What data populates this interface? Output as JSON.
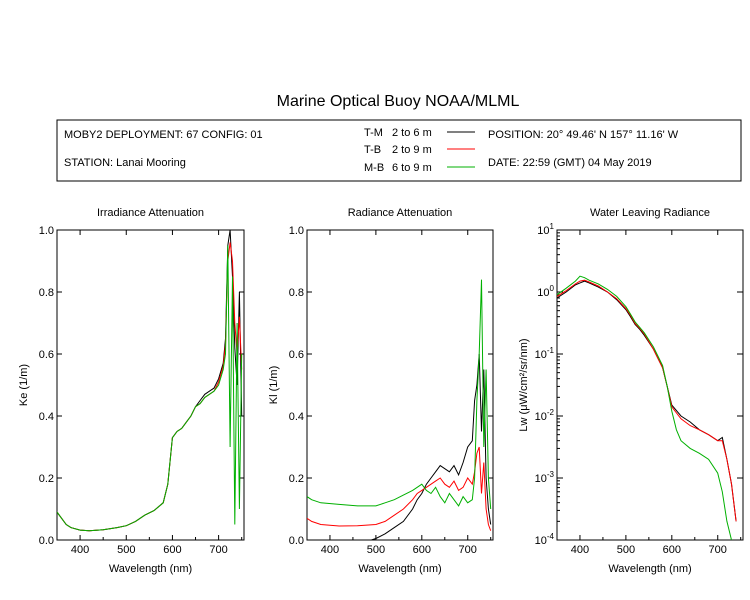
{
  "title": "Marine Optical Buoy NOAA/MLML",
  "info": {
    "deployment": "MOBY2 DEPLOYMENT: 67 CONFIG: 01",
    "station": "STATION: Lanai Mooring",
    "position": "POSITION: 20° 49.46' N   157° 11.16' W",
    "date": "DATE: 22:59 (GMT) 04 May 2019"
  },
  "legend": [
    {
      "code": "T-M",
      "range": "2 to 6  m",
      "color": "#000000"
    },
    {
      "code": "T-B",
      "range": "2 to 9  m",
      "color": "#ff0000"
    },
    {
      "code": "M-B",
      "range": "6 to 9  m",
      "color": "#00b000"
    }
  ],
  "chart_data": [
    {
      "type": "line",
      "title": "Irradiance Attenuation",
      "xlabel": "Wavelength (nm)",
      "ylabel": "Ke  (1/m)",
      "xlim": [
        350,
        755
      ],
      "ylim": [
        0,
        1
      ],
      "xticks": [
        400,
        500,
        600,
        700
      ],
      "xtick_labels": [
        "400",
        "500",
        "600",
        "700"
      ],
      "yticks": [
        0,
        0.2,
        0.4,
        0.6,
        0.8,
        1.0
      ],
      "ytick_labels": [
        "0.0",
        "0.2",
        "0.4",
        "0.6",
        "0.8",
        "1.0"
      ],
      "series": [
        {
          "name": "T-M",
          "color": "#000000",
          "x": [
            350,
            360,
            370,
            380,
            400,
            420,
            450,
            480,
            500,
            520,
            540,
            560,
            580,
            590,
            600,
            610,
            620,
            630,
            640,
            650,
            660,
            670,
            680,
            690,
            700,
            710,
            715,
            720,
            725,
            730,
            735,
            740,
            745,
            750
          ],
          "y": [
            0.09,
            0.07,
            0.05,
            0.04,
            0.032,
            0.03,
            0.033,
            0.04,
            0.046,
            0.06,
            0.08,
            0.095,
            0.12,
            0.18,
            0.33,
            0.35,
            0.36,
            0.38,
            0.4,
            0.43,
            0.45,
            0.47,
            0.48,
            0.49,
            0.52,
            0.57,
            0.65,
            0.95,
            1.0,
            0.85,
            0.62,
            0.5,
            0.8,
            0.4
          ]
        },
        {
          "name": "T-B",
          "color": "#ff0000",
          "x": [
            350,
            360,
            370,
            380,
            400,
            420,
            450,
            480,
            500,
            520,
            540,
            560,
            580,
            590,
            600,
            610,
            620,
            630,
            640,
            650,
            660,
            670,
            680,
            690,
            700,
            710,
            715,
            720,
            725,
            730,
            735,
            740,
            745,
            750
          ],
          "y": [
            0.09,
            0.07,
            0.05,
            0.04,
            0.032,
            0.03,
            0.033,
            0.04,
            0.046,
            0.06,
            0.08,
            0.095,
            0.12,
            0.18,
            0.33,
            0.35,
            0.36,
            0.38,
            0.4,
            0.43,
            0.44,
            0.46,
            0.47,
            0.48,
            0.51,
            0.56,
            0.63,
            0.9,
            0.96,
            0.9,
            0.7,
            0.6,
            0.72,
            0.55
          ]
        },
        {
          "name": "M-B",
          "color": "#00b000",
          "x": [
            350,
            360,
            370,
            380,
            400,
            420,
            450,
            480,
            500,
            520,
            540,
            560,
            580,
            590,
            600,
            610,
            620,
            630,
            640,
            650,
            660,
            670,
            680,
            690,
            700,
            710,
            715,
            720,
            725,
            730,
            735,
            740,
            745,
            750
          ],
          "y": [
            0.09,
            0.07,
            0.05,
            0.04,
            0.032,
            0.03,
            0.033,
            0.04,
            0.046,
            0.06,
            0.08,
            0.095,
            0.12,
            0.18,
            0.33,
            0.35,
            0.36,
            0.38,
            0.4,
            0.43,
            0.44,
            0.46,
            0.47,
            0.48,
            0.5,
            0.55,
            0.6,
            0.95,
            0.3,
            0.85,
            0.05,
            0.7,
            0.1,
            0.6
          ]
        }
      ]
    },
    {
      "type": "line",
      "title": "Radiance Attenuation",
      "xlabel": "Wavelength (nm)",
      "ylabel": "Kl  (1/m)",
      "xlim": [
        350,
        755
      ],
      "ylim": [
        0,
        1
      ],
      "xticks": [
        400,
        500,
        600,
        700
      ],
      "xtick_labels": [
        "400",
        "500",
        "600",
        "700"
      ],
      "yticks": [
        0,
        0.2,
        0.4,
        0.6,
        0.8,
        1.0
      ],
      "ytick_labels": [
        "0.0",
        "0.2",
        "0.4",
        "0.6",
        "0.8",
        "1.0"
      ],
      "series": [
        {
          "name": "T-M",
          "color": "#000000",
          "x": [
            350,
            380,
            420,
            460,
            490,
            500,
            520,
            540,
            560,
            580,
            590,
            600,
            610,
            620,
            630,
            640,
            650,
            660,
            670,
            680,
            690,
            700,
            710,
            715,
            720,
            725,
            730,
            735,
            740,
            745,
            750
          ],
          "y": [
            0.0,
            0.0,
            0.0,
            0.0,
            0.0,
            0.005,
            0.02,
            0.04,
            0.06,
            0.1,
            0.13,
            0.15,
            0.18,
            0.2,
            0.22,
            0.24,
            0.23,
            0.22,
            0.24,
            0.21,
            0.25,
            0.3,
            0.32,
            0.45,
            0.5,
            0.6,
            0.35,
            0.55,
            0.2,
            0.1,
            0.05
          ]
        },
        {
          "name": "T-B",
          "color": "#ff0000",
          "x": [
            350,
            360,
            380,
            420,
            460,
            500,
            520,
            540,
            560,
            580,
            590,
            600,
            610,
            620,
            630,
            640,
            650,
            660,
            670,
            680,
            690,
            700,
            710,
            715,
            720,
            725,
            730,
            735,
            740,
            745,
            750
          ],
          "y": [
            0.07,
            0.06,
            0.05,
            0.045,
            0.046,
            0.05,
            0.06,
            0.08,
            0.1,
            0.13,
            0.15,
            0.16,
            0.17,
            0.18,
            0.19,
            0.2,
            0.18,
            0.17,
            0.19,
            0.16,
            0.17,
            0.2,
            0.18,
            0.22,
            0.28,
            0.3,
            0.15,
            0.25,
            0.1,
            0.05,
            0.03
          ]
        },
        {
          "name": "M-B",
          "color": "#00b000",
          "x": [
            350,
            360,
            380,
            420,
            460,
            500,
            520,
            540,
            560,
            580,
            590,
            600,
            610,
            620,
            630,
            640,
            650,
            660,
            670,
            680,
            690,
            700,
            710,
            715,
            720,
            725,
            730,
            735,
            740,
            745,
            750
          ],
          "y": [
            0.14,
            0.13,
            0.12,
            0.115,
            0.11,
            0.11,
            0.12,
            0.13,
            0.145,
            0.16,
            0.17,
            0.18,
            0.16,
            0.15,
            0.17,
            0.14,
            0.12,
            0.15,
            0.13,
            0.11,
            0.14,
            0.12,
            0.13,
            0.2,
            0.45,
            0.6,
            0.84,
            0.3,
            0.55,
            0.2,
            0.1
          ]
        }
      ]
    },
    {
      "type": "line",
      "title": "Water Leaving Radiance",
      "xlabel": "Wavelength (nm)",
      "ylabel": "Lw  (μW/cm²/sr/nm)",
      "xscale": "log-y",
      "xlim": [
        350,
        755
      ],
      "ylim": [
        0.0001,
        10
      ],
      "xticks": [
        400,
        500,
        600,
        700
      ],
      "xtick_labels": [
        "400",
        "500",
        "600",
        "700"
      ],
      "ytick_labels": [
        "10^1",
        "10^0",
        "10^-1",
        "10^-2",
        "10^-3",
        "10^-4"
      ],
      "series": [
        {
          "name": "T-M",
          "color": "#000000",
          "x": [
            350,
            370,
            390,
            400,
            410,
            420,
            440,
            460,
            480,
            500,
            510,
            520,
            530,
            540,
            560,
            580,
            590,
            600,
            620,
            640,
            660,
            680,
            700,
            710,
            720,
            730,
            740
          ],
          "y": [
            0.8,
            1.0,
            1.3,
            1.4,
            1.5,
            1.4,
            1.2,
            1.0,
            0.75,
            0.52,
            0.4,
            0.3,
            0.25,
            0.2,
            0.12,
            0.06,
            0.03,
            0.015,
            0.01,
            0.008,
            0.006,
            0.005,
            0.004,
            0.0045,
            0.002,
            0.0008,
            0.0002
          ]
        },
        {
          "name": "T-B",
          "color": "#ff0000",
          "x": [
            350,
            370,
            390,
            400,
            410,
            420,
            440,
            460,
            480,
            500,
            510,
            520,
            530,
            540,
            560,
            580,
            590,
            600,
            620,
            640,
            660,
            680,
            700,
            710,
            720,
            730,
            740
          ],
          "y": [
            0.85,
            1.05,
            1.35,
            1.5,
            1.55,
            1.45,
            1.25,
            1.0,
            0.78,
            0.54,
            0.42,
            0.31,
            0.26,
            0.21,
            0.12,
            0.06,
            0.03,
            0.014,
            0.009,
            0.007,
            0.006,
            0.005,
            0.004,
            0.004,
            0.002,
            0.0008,
            0.0002
          ]
        },
        {
          "name": "M-B",
          "color": "#00b000",
          "x": [
            350,
            370,
            390,
            400,
            410,
            420,
            440,
            460,
            480,
            500,
            510,
            520,
            530,
            540,
            560,
            580,
            590,
            600,
            610,
            620,
            640,
            660,
            680,
            700,
            710,
            720,
            730
          ],
          "y": [
            0.9,
            1.15,
            1.5,
            1.8,
            1.7,
            1.55,
            1.35,
            1.1,
            0.85,
            0.58,
            0.44,
            0.33,
            0.27,
            0.22,
            0.13,
            0.065,
            0.03,
            0.012,
            0.006,
            0.004,
            0.003,
            0.0025,
            0.002,
            0.0012,
            0.0006,
            0.0002,
            0.0001
          ]
        }
      ]
    }
  ]
}
